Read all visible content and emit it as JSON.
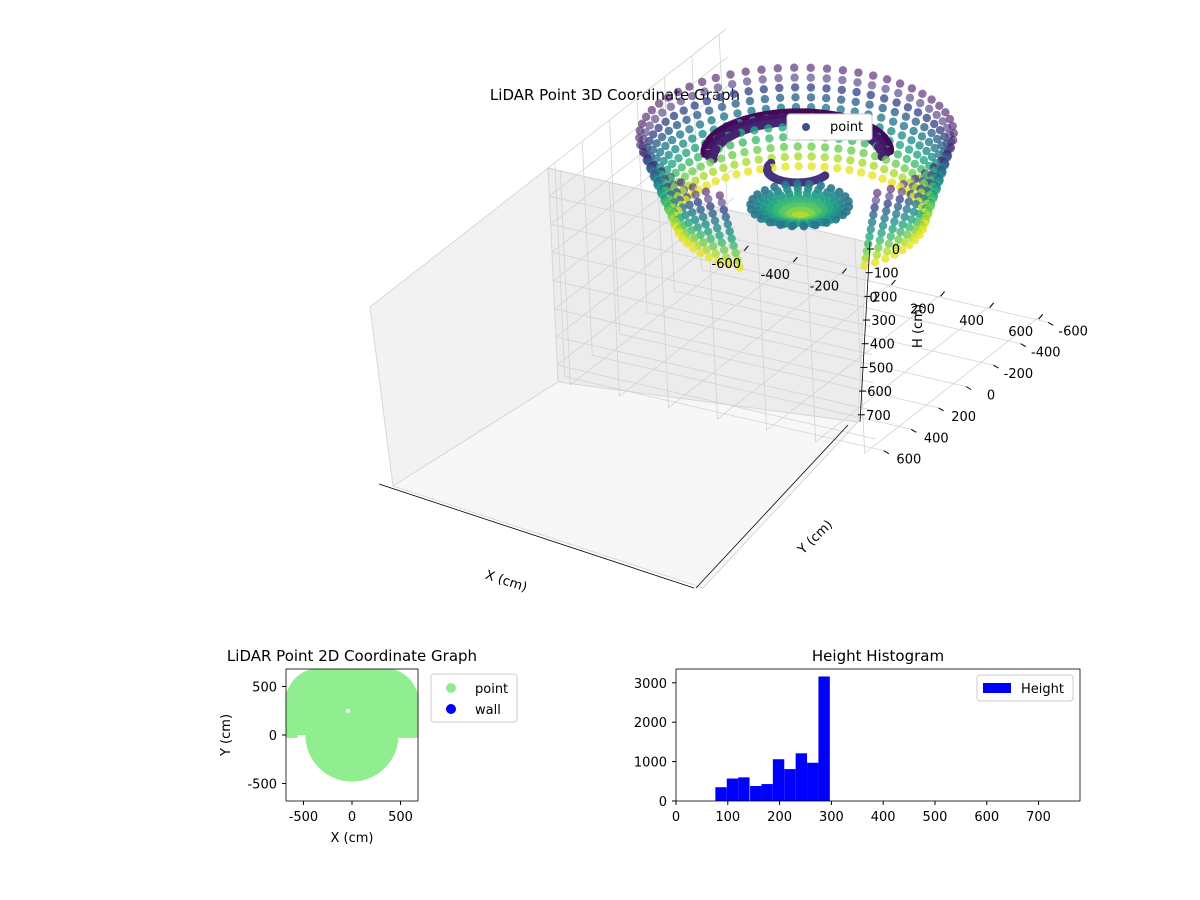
{
  "chart_data": [
    {
      "type": "scatter",
      "projection": "3d",
      "title": "LiDAR Point 3D Coordinate Graph",
      "xlabel": "X (cm)",
      "ylabel": "Y (cm)",
      "zlabel": "H (cm)",
      "xlim": [
        -650,
        650
      ],
      "ylim": [
        -650,
        650
      ],
      "zlim": [
        760,
        0
      ],
      "x_ticks": [
        -600,
        -400,
        -200,
        0,
        200,
        400,
        600
      ],
      "y_ticks": [
        -600,
        -400,
        -200,
        0,
        200,
        400,
        600
      ],
      "z_ticks": [
        0,
        100,
        200,
        300,
        400,
        500,
        600,
        700
      ],
      "z_inverted": true,
      "colormap": "viridis",
      "grid": true,
      "legend": {
        "position": "top-right",
        "entries": [
          {
            "label": "point",
            "color": "#3b528b"
          }
        ]
      },
      "series": [
        {
          "name": "point",
          "description_hidden": true,
          "structures": [
            {
              "shape": "ring",
              "radius": 560,
              "height_top": 0,
              "height_bottom": 310,
              "theta_start_deg": 90,
              "theta_end_deg": 390
            },
            {
              "shape": "disk",
              "radius": 190,
              "height": 300
            },
            {
              "shape": "arc",
              "radius": 330,
              "height": 60,
              "theta_start_deg": 150,
              "theta_end_deg": 330
            },
            {
              "shape": "arc",
              "radius": 110,
              "height": 120,
              "theta_start_deg": 0,
              "theta_end_deg": 180
            }
          ]
        }
      ]
    },
    {
      "type": "scatter",
      "title": "LiDAR Point 2D Coordinate Graph",
      "xlabel": "X (cm)",
      "ylabel": "Y (cm)",
      "xlim": [
        -680,
        680
      ],
      "ylim": [
        -680,
        680
      ],
      "x_ticks": [
        -500,
        0,
        500
      ],
      "y_ticks": [
        -500,
        0,
        500
      ],
      "legend": {
        "position": "outside-right",
        "entries": [
          {
            "label": "point",
            "color": "#90ee90"
          },
          {
            "label": "wall",
            "color": "#0000ff"
          }
        ]
      },
      "series": [
        {
          "name": "point",
          "color": "#90ee90",
          "region": {
            "upper_half_radius": 680,
            "lower_disk_radius": 480,
            "band_y": [
              0,
              30
            ]
          }
        },
        {
          "name": "wall",
          "color": "#0000ff",
          "values": []
        }
      ]
    },
    {
      "type": "bar",
      "subtype": "histogram",
      "title": "Height Histogram",
      "legend": {
        "position": "top-right",
        "entries": [
          {
            "label": "Height",
            "color": "#0000ff"
          }
        ]
      },
      "xlim": [
        0,
        780
      ],
      "ylim": [
        0,
        3350
      ],
      "x_ticks": [
        0,
        100,
        200,
        300,
        400,
        500,
        600,
        700
      ],
      "y_ticks": [
        0,
        1000,
        2000,
        3000
      ],
      "bin_width": 22,
      "bins": [
        {
          "x0": 76,
          "count": 350
        },
        {
          "x0": 98,
          "count": 570
        },
        {
          "x0": 120,
          "count": 600
        },
        {
          "x0": 143,
          "count": 380
        },
        {
          "x0": 165,
          "count": 430
        },
        {
          "x0": 187,
          "count": 1060
        },
        {
          "x0": 209,
          "count": 810
        },
        {
          "x0": 231,
          "count": 1210
        },
        {
          "x0": 253,
          "count": 970
        },
        {
          "x0": 275,
          "count": 3160
        }
      ]
    }
  ]
}
